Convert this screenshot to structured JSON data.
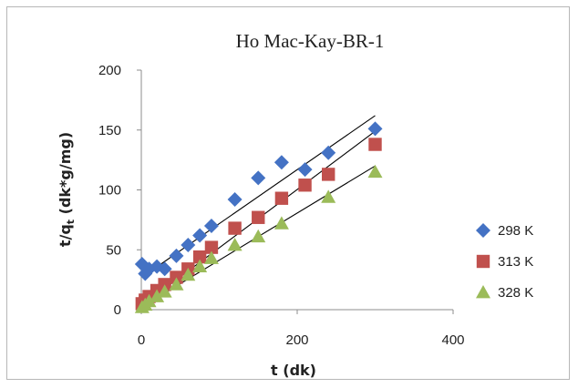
{
  "chart_data": {
    "type": "scatter",
    "title": "Ho Mac-Kay-BR-1",
    "xlabel": "t (dk)",
    "ylabel_main": "t/q",
    "ylabel_sub": "t",
    "ylabel_rest": " (dk*g/mg)",
    "xlim": [
      0,
      400
    ],
    "ylim": [
      0,
      200
    ],
    "xticks": [
      "0",
      "200",
      "400"
    ],
    "yticks": [
      "0",
      "50",
      "100",
      "150",
      "200"
    ],
    "grid": false,
    "legend_position": "right",
    "series": [
      {
        "name": "298 K",
        "marker": "diamond",
        "color": "#4472c4",
        "x": [
          1,
          5,
          10,
          20,
          30,
          45,
          60,
          75,
          90,
          120,
          150,
          180,
          210,
          240,
          300
        ],
        "y": [
          38,
          30,
          34,
          36,
          34,
          45,
          54,
          62,
          70,
          92,
          110,
          123,
          117,
          131,
          151
        ],
        "trend": [
          [
            5,
            29
          ],
          [
            300,
            162
          ]
        ]
      },
      {
        "name": "313 K",
        "marker": "square",
        "color": "#c0504d",
        "x": [
          1,
          5,
          10,
          20,
          30,
          45,
          60,
          75,
          90,
          120,
          150,
          180,
          210,
          240,
          300
        ],
        "y": [
          5,
          8,
          11,
          16,
          21,
          27,
          34,
          44,
          52,
          68,
          77,
          93,
          104,
          113,
          138
        ],
        "trend": [
          [
            0,
            3
          ],
          [
            300,
            149
          ]
        ]
      },
      {
        "name": "328 K",
        "marker": "triangle",
        "color": "#9bbb59",
        "x": [
          1,
          5,
          10,
          20,
          30,
          45,
          60,
          75,
          90,
          120,
          150,
          180,
          240,
          300
        ],
        "y": [
          2,
          4,
          7,
          11,
          15,
          21,
          29,
          36,
          43,
          54,
          61,
          72,
          94,
          115
        ],
        "trend": [
          [
            0,
            2
          ],
          [
            300,
            120
          ]
        ]
      }
    ]
  }
}
